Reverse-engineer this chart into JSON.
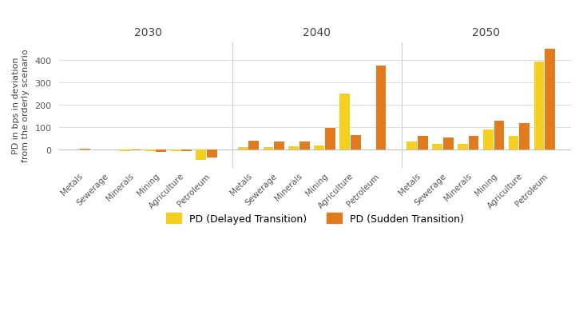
{
  "sectors": [
    "Metals",
    "Sewerage",
    "Minerals",
    "Mining",
    "Agriculture",
    "Petroleum"
  ],
  "years": [
    "2030",
    "2040",
    "2050"
  ],
  "delayed_transition": [
    [
      2,
      1,
      -5,
      -5,
      -5,
      -45
    ],
    [
      13,
      12,
      15,
      20,
      250,
      0
    ],
    [
      35,
      27,
      27,
      90,
      60,
      395
    ]
  ],
  "sudden_transition": [
    [
      3,
      1,
      -2,
      -8,
      -5,
      -35
    ],
    [
      40,
      35,
      38,
      98,
      65,
      375
    ],
    [
      62,
      55,
      60,
      130,
      118,
      450
    ]
  ],
  "color_delayed": "#F5D020",
  "color_sudden": "#E07B20",
  "ylabel": "PD in bps in deviation\nfrom the orderly scenario",
  "background_color": "#FFFFFF",
  "grid_color": "#DDDDDD",
  "legend_delayed": "PD (Delayed Transition)",
  "legend_sudden": "PD (Sudden Transition)",
  "ylim": [
    -80,
    480
  ],
  "yticks": [
    0,
    100,
    200,
    300,
    400
  ]
}
